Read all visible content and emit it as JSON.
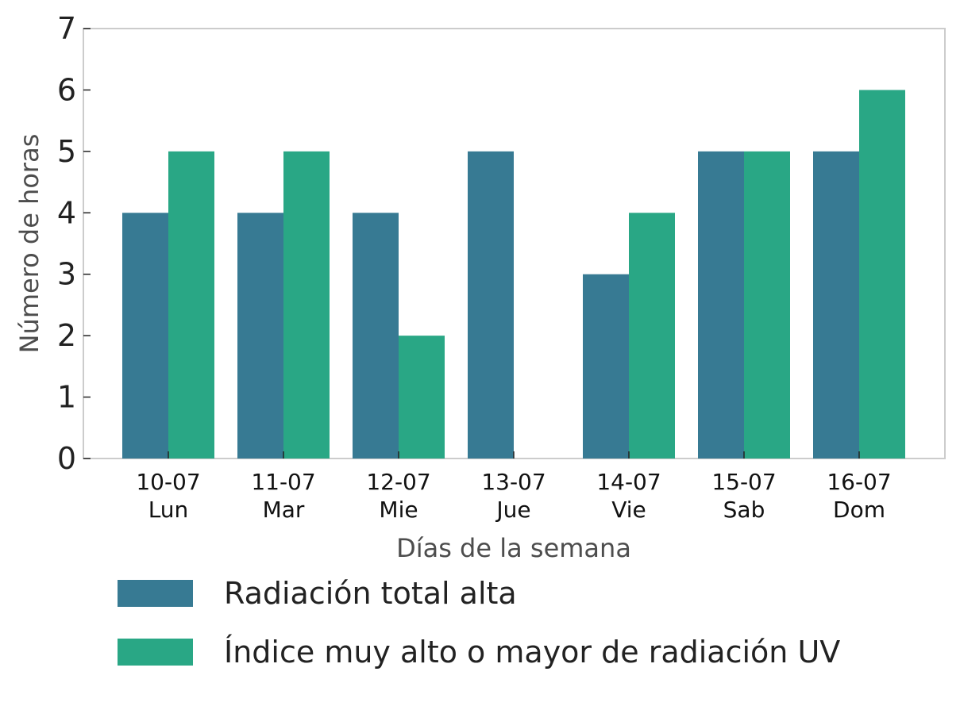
{
  "chart_data": {
    "type": "bar",
    "categories": [
      [
        "10-07",
        "Lun"
      ],
      [
        "11-07",
        "Mar"
      ],
      [
        "12-07",
        "Mie"
      ],
      [
        "13-07",
        "Jue"
      ],
      [
        "14-07",
        "Vie"
      ],
      [
        "15-07",
        "Sab"
      ],
      [
        "16-07",
        "Dom"
      ]
    ],
    "series": [
      {
        "name": "Radiación total alta",
        "color": "#377a93",
        "values": [
          4,
          4,
          4,
          5,
          3,
          5,
          5
        ]
      },
      {
        "name": "Índice muy alto o mayor de radiación UV",
        "color": "#29a785",
        "values": [
          5,
          5,
          2,
          0,
          4,
          5,
          6
        ]
      }
    ],
    "xlabel": "Días de la semana",
    "ylabel": "Número de horas",
    "ylim": [
      0,
      7
    ],
    "yticks": [
      0,
      1,
      2,
      3,
      4,
      5,
      6,
      7
    ],
    "grid": false,
    "legend_position": "bottom"
  }
}
